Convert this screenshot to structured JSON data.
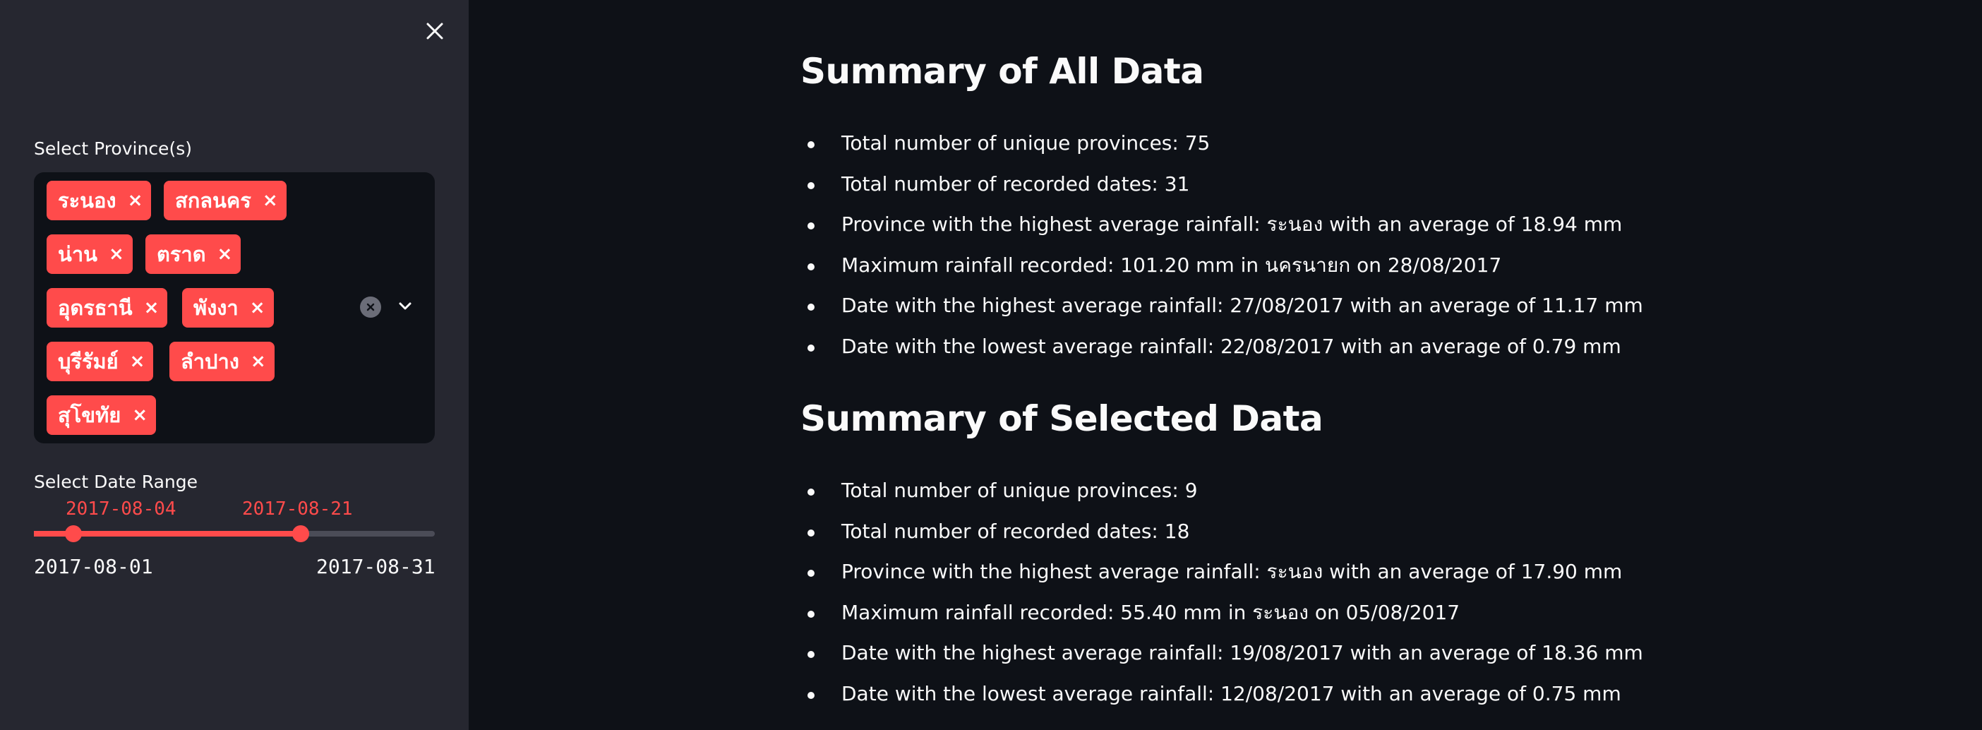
{
  "sidebar": {
    "close_icon": "close-icon",
    "province_label": "Select Province(s)",
    "provinces": [
      "ระนอง",
      "สกลนคร",
      "น่าน",
      "ตราด",
      "อุดรธานี",
      "พังงา",
      "บุรีรัมย์",
      "ลำปาง",
      "สุโขทัย"
    ],
    "tag_remove": "×",
    "clear_icon": "clear-circle-icon",
    "dropdown_icon": "chevron-down-icon",
    "date_label": "Select Date Range",
    "date_start": "2017-08-04",
    "date_end": "2017-08-21",
    "date_min": "2017-08-01",
    "date_max": "2017-08-31"
  },
  "main": {
    "all": {
      "title": "Summary of All Data",
      "items": [
        "Total number of unique provinces: 75",
        "Total number of recorded dates: 31",
        "Province with the highest average rainfall: ระนอง with an average of 18.94 mm",
        "Maximum rainfall recorded: 101.20 mm in นครนายก on 28/08/2017",
        "Date with the highest average rainfall: 27/08/2017 with an average of 11.17 mm",
        "Date with the lowest average rainfall: 22/08/2017 with an average of 0.79 mm"
      ]
    },
    "selected": {
      "title": "Summary of Selected Data",
      "items": [
        "Total number of unique provinces: 9",
        "Total number of recorded dates: 18",
        "Province with the highest average rainfall: ระนอง with an average of 17.90 mm",
        "Maximum rainfall recorded: 55.40 mm in ระนอง on 05/08/2017",
        "Date with the highest average rainfall: 19/08/2017 with an average of 18.36 mm",
        "Date with the lowest average rainfall: 12/08/2017 with an average of 0.75 mm"
      ]
    }
  },
  "colors": {
    "accent": "#ff4b4b",
    "sidebar_bg": "#262730",
    "main_bg": "#0e1117",
    "text": "#fafafa"
  }
}
